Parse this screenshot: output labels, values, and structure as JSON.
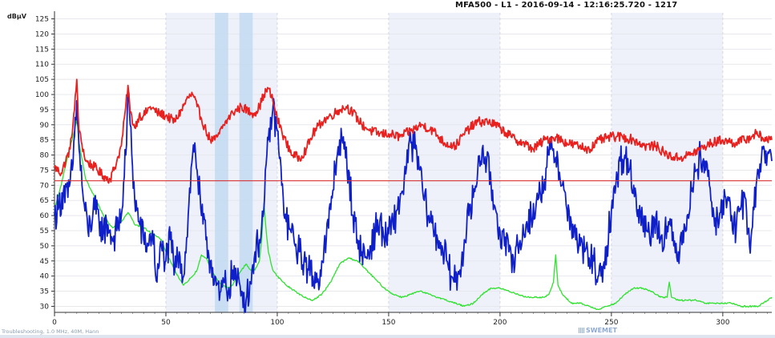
{
  "header": {
    "title": "MFA500 - L1 - 2016-09-14 - 12:16:25.720 - 1217"
  },
  "footer": {
    "status_text": "Troubleshooting, 1.0 MHz, 40M, Hann",
    "logo_text": "SWEMET"
  },
  "colors": {
    "red_series": "#e8201e",
    "blue_series": "#1020c8",
    "green_series": "#2ee22e",
    "limit_line": "#d83030",
    "band_shade": "#eef0fa",
    "marker_band": "#bcd8f0"
  },
  "chart_data": {
    "type": "line",
    "title": "MFA500 - L1 - 2016-09-14 - 12:16:25.720 - 1217",
    "ylabel": "dBµV",
    "xlabel": "",
    "xlim": [
      0,
      322
    ],
    "ylim": [
      28,
      127
    ],
    "x_ticks": [
      0,
      50,
      100,
      150,
      200,
      250,
      300
    ],
    "y_ticks": [
      30,
      35,
      40,
      45,
      50,
      55,
      60,
      65,
      70,
      75,
      80,
      85,
      90,
      95,
      100,
      105,
      110,
      115,
      120,
      125
    ],
    "grid": true,
    "legend": "none",
    "limit_line": 71.5,
    "shaded_bands": [
      [
        50,
        100
      ],
      [
        150,
        200
      ],
      [
        250,
        300
      ]
    ],
    "marker_bands": [
      [
        72,
        78
      ],
      [
        83,
        89
      ]
    ],
    "series": [
      {
        "color": "#e8201e",
        "x": [
          0,
          3,
          7,
          9,
          10,
          11,
          14,
          18,
          22,
          25,
          28,
          30,
          32,
          33,
          34,
          36,
          38,
          40,
          43,
          46,
          50,
          54,
          57,
          60,
          62,
          64,
          66,
          68,
          70,
          72,
          74,
          76,
          78,
          80,
          84,
          88,
          90,
          92,
          94,
          96,
          98,
          100,
          102,
          104,
          107,
          110,
          113,
          116,
          120,
          124,
          128,
          131,
          134,
          138,
          142,
          146,
          150,
          155,
          160,
          165,
          170,
          175,
          180,
          185,
          190,
          195,
          200,
          205,
          210,
          215,
          220,
          225,
          230,
          235,
          240,
          245,
          250,
          255,
          260,
          265,
          270,
          275,
          280,
          285,
          290,
          295,
          300,
          305,
          310,
          315,
          320,
          322
        ],
        "y": [
          76,
          74,
          82,
          95,
          105,
          88,
          78,
          76,
          73,
          72,
          78,
          83,
          96,
          103,
          94,
          89,
          93,
          93,
          96,
          94,
          93,
          91,
          95,
          99,
          100,
          96,
          92,
          88,
          85,
          85,
          87,
          90,
          92,
          94,
          96,
          94,
          94,
          96,
          100,
          102,
          98,
          92,
          88,
          84,
          80,
          79,
          82,
          87,
          91,
          93,
          95,
          96,
          94,
          90,
          88,
          87,
          87,
          86,
          88,
          90,
          88,
          84,
          83,
          88,
          91,
          91,
          89,
          86,
          84,
          82,
          85,
          86,
          84,
          83,
          82,
          85,
          86,
          86,
          85,
          83,
          83,
          80,
          79,
          80,
          82,
          84,
          85,
          84,
          85,
          87,
          85,
          85
        ]
      },
      {
        "color": "#1020c8",
        "x": [
          0,
          2,
          4,
          6,
          8,
          10,
          11,
          13,
          15,
          18,
          20,
          22,
          24,
          26,
          28,
          30,
          32,
          33,
          34,
          36,
          38,
          40,
          42,
          44,
          46,
          48,
          50,
          52,
          54,
          56,
          58,
          60,
          62,
          63,
          64,
          66,
          68,
          70,
          72,
          74,
          76,
          78,
          80,
          82,
          84,
          86,
          88,
          90,
          92,
          94,
          96,
          98,
          100,
          102,
          104,
          106,
          108,
          110,
          112,
          114,
          116,
          118,
          120,
          122,
          124,
          126,
          128,
          130,
          132,
          134,
          136,
          138,
          140,
          142,
          144,
          146,
          148,
          150,
          152,
          154,
          156,
          158,
          160,
          162,
          164,
          166,
          168,
          170,
          172,
          174,
          176,
          178,
          180,
          182,
          184,
          186,
          188,
          190,
          192,
          194,
          196,
          198,
          200,
          202,
          204,
          206,
          208,
          210,
          212,
          214,
          216,
          218,
          220,
          222,
          224,
          226,
          228,
          230,
          232,
          234,
          236,
          238,
          240,
          242,
          244,
          246,
          248,
          250,
          252,
          254,
          256,
          258,
          260,
          262,
          264,
          266,
          268,
          270,
          272,
          274,
          276,
          278,
          280,
          282,
          284,
          286,
          288,
          290,
          292,
          294,
          296,
          298,
          300,
          302,
          304,
          306,
          308,
          310,
          312,
          314,
          316,
          318,
          320,
          322
        ],
        "y": [
          60,
          63,
          68,
          66,
          75,
          98,
          82,
          65,
          55,
          62,
          58,
          55,
          57,
          52,
          55,
          60,
          80,
          100,
          90,
          65,
          58,
          52,
          50,
          55,
          38,
          50,
          45,
          52,
          42,
          48,
          40,
          60,
          80,
          84,
          75,
          60,
          52,
          45,
          40,
          32,
          38,
          35,
          42,
          38,
          35,
          32,
          38,
          48,
          52,
          62,
          85,
          95,
          88,
          70,
          58,
          55,
          50,
          48,
          45,
          42,
          40,
          38,
          45,
          52,
          62,
          76,
          85,
          82,
          75,
          60,
          52,
          48,
          46,
          50,
          55,
          58,
          52,
          54,
          57,
          62,
          68,
          76,
          84,
          82,
          75,
          65,
          60,
          56,
          52,
          50,
          45,
          40,
          38,
          42,
          52,
          60,
          66,
          75,
          82,
          78,
          70,
          62,
          55,
          50,
          48,
          46,
          50,
          52,
          58,
          60,
          62,
          68,
          72,
          80,
          82,
          78,
          70,
          62,
          58,
          52,
          50,
          48,
          46,
          45,
          40,
          38,
          50,
          62,
          70,
          78,
          80,
          75,
          70,
          62,
          58,
          55,
          55,
          60,
          52,
          55,
          57,
          50,
          48,
          55,
          60,
          68,
          75,
          80,
          78,
          70,
          60,
          56,
          65,
          65,
          60,
          55,
          62,
          66,
          50,
          62,
          75,
          82,
          80,
          78
        ]
      },
      {
        "color": "#2ee22e",
        "x": [
          0,
          3,
          6,
          9,
          10,
          11,
          14,
          18,
          22,
          26,
          30,
          32,
          33,
          34,
          36,
          40,
          44,
          48,
          50,
          52,
          54,
          56,
          58,
          62,
          64,
          66,
          68,
          70,
          72,
          75,
          78,
          80,
          82,
          84,
          86,
          88,
          90,
          92,
          93,
          94,
          95,
          96,
          98,
          100,
          104,
          108,
          112,
          116,
          120,
          124,
          128,
          132,
          136,
          140,
          144,
          148,
          150,
          152,
          156,
          160,
          164,
          168,
          172,
          176,
          180,
          184,
          188,
          192,
          196,
          200,
          204,
          208,
          212,
          216,
          220,
          222,
          224,
          225,
          226,
          228,
          232,
          236,
          240,
          244,
          248,
          252,
          256,
          260,
          264,
          268,
          272,
          275,
          276,
          277,
          280,
          284,
          288,
          292,
          296,
          300,
          304,
          308,
          312,
          316,
          320,
          322
        ],
        "y": [
          62,
          70,
          80,
          88,
          92,
          84,
          72,
          66,
          60,
          56,
          58,
          60,
          61,
          60,
          57,
          56,
          54,
          52,
          48,
          45,
          42,
          39,
          37,
          40,
          42,
          47,
          46,
          43,
          40,
          37,
          36,
          37,
          40,
          42,
          44,
          42,
          42,
          45,
          52,
          64,
          55,
          48,
          42,
          40,
          37,
          35,
          33,
          32,
          34,
          38,
          44,
          46,
          45,
          42,
          39,
          36,
          35,
          34,
          33,
          34,
          35,
          34,
          33,
          32,
          31,
          30,
          31,
          34,
          36,
          36,
          35,
          34,
          33,
          33,
          33,
          34,
          38,
          47,
          37,
          34,
          31,
          31,
          30,
          29,
          30,
          31,
          34,
          36,
          36,
          35,
          33,
          33,
          38,
          33,
          32,
          32,
          32,
          31,
          31,
          31,
          31,
          30,
          30,
          30,
          32,
          33
        ]
      }
    ]
  }
}
